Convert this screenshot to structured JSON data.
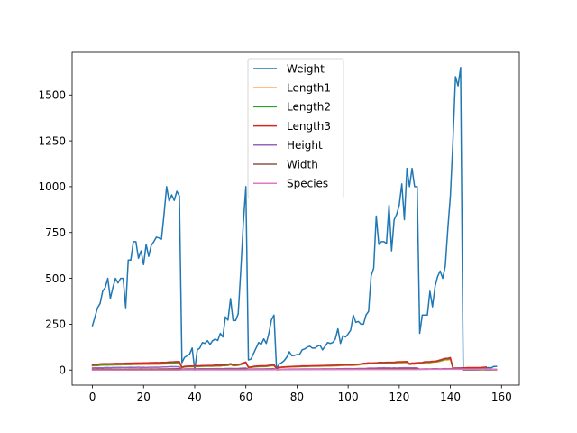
{
  "chart_data": {
    "type": "line",
    "title": "",
    "xlabel": "",
    "ylabel": "",
    "xlim": [
      -7.95,
      166.95
    ],
    "ylim": [
      -82.5,
      1732.5
    ],
    "x_ticks": [
      0,
      20,
      40,
      60,
      80,
      100,
      120,
      140,
      160
    ],
    "y_ticks": [
      0,
      250,
      500,
      750,
      1000,
      1250,
      1500
    ],
    "legend_position": "upper center",
    "series": [
      {
        "name": "Weight",
        "color": "#1f77b4",
        "values": [
          242,
          290,
          340,
          363,
          430,
          450,
          500,
          390,
          450,
          500,
          475,
          500,
          500,
          340,
          600,
          600,
          700,
          700,
          610,
          650,
          575,
          685,
          620,
          680,
          700,
          725,
          720,
          714,
          850,
          1000,
          920,
          955,
          925,
          975,
          950,
          40,
          69,
          78,
          87,
          120,
          0,
          110,
          120,
          150,
          145,
          160,
          140,
          160,
          169,
          161,
          200,
          180,
          290,
          272,
          390,
          270,
          270,
          306,
          540,
          800,
          1000,
          55,
          60,
          90,
          120,
          150,
          140,
          170,
          145,
          200,
          273,
          300,
          5.9,
          32,
          40,
          51.5,
          70,
          100,
          78,
          80,
          85,
          85,
          110,
          115,
          125,
          130,
          120,
          120,
          130,
          135,
          110,
          130,
          150,
          145,
          150,
          170,
          225,
          145,
          188,
          180,
          197,
          218,
          300,
          260,
          265,
          250,
          250,
          300,
          320,
          514,
          556,
          840,
          685,
          700,
          700,
          690,
          900,
          650,
          820,
          850,
          900,
          1015,
          820,
          1100,
          1000,
          1100,
          1000,
          1000,
          200,
          300,
          300,
          300,
          430,
          345,
          456,
          510,
          540,
          500,
          567,
          770,
          950,
          1250,
          1600,
          1550,
          1650,
          6.7,
          7.5,
          7,
          9.7,
          9.8,
          8.7,
          10,
          9.9,
          9.8,
          12.2,
          13.4,
          12.2,
          19.7,
          19.9
        ]
      },
      {
        "name": "Length1",
        "color": "#ff7f0e",
        "values": [
          23.2,
          24,
          23.9,
          26.3,
          26.5,
          26.8,
          26.8,
          27.6,
          27.6,
          28.5,
          28.4,
          28.7,
          29.1,
          29.5,
          29.4,
          29.4,
          30.4,
          30.4,
          30.9,
          31,
          31.3,
          31.4,
          31.5,
          31.8,
          31.9,
          31.8,
          32,
          32.7,
          32.8,
          33.5,
          35,
          35,
          36.2,
          37.4,
          38,
          12.9,
          16.5,
          17.5,
          18.2,
          18.6,
          19,
          19.1,
          19.4,
          20.4,
          20.5,
          20.5,
          21,
          21.1,
          22,
          22,
          22.1,
          23.6,
          24,
          25,
          29.5,
          23.6,
          24.1,
          25.6,
          28.5,
          33.7,
          37.3,
          13.5,
          14.3,
          16.3,
          17.5,
          18.4,
          19,
          19,
          19.8,
          21.2,
          23,
          24,
          7.5,
          12.5,
          13.8,
          15,
          15.7,
          16.2,
          16.8,
          17.2,
          17.8,
          18.2,
          19,
          19,
          19.8,
          20,
          20.5,
          20.5,
          20.7,
          21,
          21.5,
          22,
          22,
          22,
          22.6,
          23,
          23.5,
          25,
          25.2,
          25.4,
          25.4,
          25.4,
          25.9,
          26.9,
          27.8,
          30.5,
          32,
          32.5,
          34,
          34,
          34.5,
          34.6,
          36.5,
          36.5,
          36.6,
          36.9,
          37,
          37,
          37.1,
          39,
          39.8,
          40.1,
          40.2,
          41.1,
          30,
          31.7,
          32.7,
          34.8,
          35.5,
          36,
          40,
          40,
          40.1,
          42,
          43.2,
          44.8,
          48.3,
          52,
          56,
          56,
          59,
          9.3,
          10,
          10.1,
          10.4,
          10.7,
          10.8,
          11.3,
          11.3,
          11.4,
          11.5,
          11.7,
          12.1,
          13.2,
          13.8
        ]
      },
      {
        "name": "Length2",
        "color": "#2ca02c",
        "values": [
          25.4,
          26.3,
          26.5,
          29,
          29,
          29.7,
          29.7,
          30,
          30,
          30.7,
          31,
          31,
          31.5,
          32,
          32,
          32,
          33,
          33,
          33.5,
          33.5,
          34,
          34,
          34.5,
          35,
          35,
          35,
          35,
          36,
          36,
          37,
          38.5,
          38.5,
          39.5,
          41,
          41,
          14.1,
          18.2,
          18.8,
          19.8,
          20,
          20.5,
          20.8,
          21,
          22,
          22,
          22,
          22.5,
          22.5,
          24,
          23.4,
          23.5,
          25.2,
          26,
          27,
          31.7,
          26,
          26.5,
          28,
          31,
          36.4,
          40,
          14.7,
          15.5,
          17.7,
          19,
          20,
          20.7,
          20.7,
          21.5,
          23,
          25,
          26,
          8.4,
          13.7,
          15,
          16.2,
          17.4,
          18,
          18.7,
          19,
          19.6,
          20,
          21,
          21,
          21.5,
          22,
          22.5,
          22.5,
          22.7,
          23,
          23.5,
          24,
          24,
          24,
          24.6,
          25,
          25.6,
          26.5,
          27.3,
          27.5,
          27.5,
          27.5,
          28,
          28.7,
          30,
          32.8,
          34.5,
          35,
          36.5,
          36,
          37,
          37,
          39,
          39,
          39,
          40,
          40,
          40,
          40,
          42,
          43,
          43,
          43.5,
          44,
          32.3,
          34,
          35,
          37.3,
          38,
          38.5,
          42.5,
          42.5,
          43,
          45,
          46,
          48,
          51.2,
          55,
          60,
          60,
          63.4,
          9.8,
          10.5,
          10.6,
          11,
          11.2,
          11.3,
          11.8,
          11.8,
          12,
          12.2,
          12.4,
          13,
          14.3,
          15
        ]
      },
      {
        "name": "Length3",
        "color": "#d62728",
        "values": [
          30,
          31.2,
          31.1,
          33.5,
          34,
          34.7,
          34.5,
          35,
          35.1,
          36.2,
          36.2,
          36.2,
          36.4,
          37.3,
          37.2,
          37.2,
          38.3,
          38.5,
          38.6,
          38.7,
          39.5,
          39.2,
          39.7,
          40.6,
          40.5,
          40.9,
          40.6,
          41.5,
          41.6,
          42.6,
          44.1,
          44,
          45.3,
          45.9,
          46.5,
          16.2,
          20.3,
          21.2,
          22.2,
          22.2,
          22.8,
          23.1,
          23.7,
          24.7,
          24.3,
          25.3,
          25,
          25,
          27.2,
          26.7,
          26.8,
          27.9,
          29.2,
          30.6,
          35,
          28.7,
          29.3,
          30.8,
          34,
          39.6,
          43.5,
          16.2,
          17.2,
          19.9,
          21.3,
          22.4,
          23.2,
          23.2,
          24.1,
          25.8,
          28,
          29,
          8.8,
          14.7,
          16,
          17.2,
          18.5,
          19.2,
          19.4,
          20.2,
          20.8,
          21,
          22.5,
          22.5,
          22.5,
          22.8,
          23.5,
          23.5,
          24,
          24.2,
          24.8,
          25,
          25.5,
          25.5,
          26.2,
          26.5,
          27,
          28,
          28.7,
          28.9,
          28.9,
          28.9,
          29.4,
          30.1,
          31.6,
          34,
          36.5,
          37.3,
          39,
          38.3,
          39.4,
          39.3,
          41.4,
          41.4,
          41.3,
          42.3,
          42.5,
          42.4,
          42.5,
          44.6,
          45.2,
          45.5,
          46,
          46.6,
          34.8,
          37.8,
          38.8,
          39.8,
          40.5,
          41,
          45.5,
          45.5,
          45.8,
          48,
          48.7,
          51.2,
          55.1,
          59.7,
          64,
          64,
          68,
          10.8,
          11.6,
          11.6,
          12,
          12.4,
          12.6,
          13.1,
          13.1,
          13.2,
          13.4,
          13.5,
          13.8,
          15.2,
          16.2
        ]
      },
      {
        "name": "Height",
        "color": "#9467bd",
        "values": [
          11.52,
          12.48,
          12.38,
          12.73,
          12.44,
          13.6,
          14.18,
          12.67,
          14,
          14.23,
          14.26,
          14.37,
          13.76,
          13.91,
          14.95,
          15.44,
          14.86,
          14.94,
          15.63,
          14.47,
          15.13,
          14.3,
          15.55,
          15.1,
          15.33,
          16.14,
          15.52,
          16.52,
          16.85,
          17.39,
          18.04,
          18.96,
          18.04,
          18.05,
          17.62,
          4.15,
          6.33,
          6.91,
          6.65,
          6.47,
          6.43,
          6.72,
          7.3,
          7.17,
          7.17,
          7.12,
          7.28,
          7.38,
          7.83,
          7.92,
          7.99,
          7.47,
          8.25,
          8.58,
          9.12,
          8.18,
          8.51,
          8.8,
          10.08,
          10.45,
          11.34,
          4.93,
          5.2,
          5.42,
          6.1,
          6.12,
          6.21,
          6.21,
          6.6,
          6.85,
          7.55,
          7.8,
          2.11,
          3.53,
          3.82,
          4.59,
          4.59,
          5.22,
          5.2,
          5.64,
          5.48,
          5.52,
          6.23,
          6.13,
          6.3,
          6.33,
          6.04,
          6.28,
          6.35,
          6.23,
          6.38,
          6.8,
          6.63,
          6.56,
          6.51,
          6.93,
          7.12,
          6.96,
          7.17,
          7.68,
          7.82,
          7.61,
          7.32,
          8.15,
          8.77,
          8.5,
          8.8,
          9.26,
          10.27,
          10.9,
          10.25,
          10.67,
          12.49,
          11.3,
          12.6,
          11.62,
          12.04,
          11.05,
          12.27,
          10.69,
          12.23,
          12.28,
          12.66,
          12.83,
          12.93,
          12.43,
          12.65,
          11.64,
          5.26,
          5.95,
          6.6,
          6.73,
          6.26,
          7.16,
          7.15,
          7.07,
          6.26,
          7.03,
          7.64,
          7.2,
          8.06,
          8.63,
          9.65,
          8.96,
          10.81,
          1.58,
          1.88,
          1.85,
          1.99,
          1.9,
          2.05,
          2.36,
          2.25,
          2.16,
          2.14,
          2.15,
          2.35,
          2.14,
          2.43
        ]
      },
      {
        "name": "Width",
        "color": "#8c564b",
        "values": [
          4.02,
          4.31,
          4.7,
          4.46,
          5.13,
          4.93,
          5.28,
          4.69,
          4.84,
          4.96,
          5.1,
          4.81,
          4.37,
          5.07,
          5.17,
          5.58,
          5.29,
          5.2,
          5.58,
          5.73,
          5.56,
          5.27,
          5.22,
          5.87,
          5.42,
          5.56,
          5.94,
          5.84,
          6.11,
          5.72,
          6.38,
          6.74,
          6.37,
          7.19,
          7.6,
          2.27,
          2.85,
          3.12,
          3.05,
          3.11,
          2.65,
          3.45,
          3.79,
          3.28,
          3.89,
          3.98,
          3.67,
          3.91,
          4.21,
          3.64,
          4.08,
          3.56,
          4.82,
          4.38,
          4.63,
          4.43,
          4.76,
          4.31,
          5.56,
          4.94,
          5.47,
          2.31,
          2.89,
          2.93,
          3.17,
          3.19,
          3.28,
          3.26,
          3.43,
          3.58,
          3.31,
          3.83,
          1.41,
          2.0,
          2.17,
          2.51,
          2.51,
          2.56,
          2.59,
          2.73,
          3.0,
          3.06,
          3.0,
          2.74,
          3.04,
          3.0,
          3.36,
          3.4,
          3.24,
          3.62,
          3.58,
          3.93,
          3.81,
          3.88,
          3.63,
          3.43,
          4.24,
          4.05,
          4.25,
          4.12,
          4.7,
          3.89,
          4.12,
          5.13,
          4.37,
          5.01,
          5.06,
          4.85,
          5.83,
          5.98,
          5.46,
          6.32,
          6.01,
          6.67,
          5.95,
          6.77,
          6.57,
          6.26,
          7.07,
          6.77,
          6.46,
          6.39,
          6.65,
          7.28,
          6.6,
          7.28,
          7.46,
          6.75,
          3.73,
          4.01,
          4.27,
          4.26,
          4.5,
          4.57,
          5.55,
          5.58,
          4.41,
          5.49,
          5.23,
          5.06,
          6.11,
          6.13,
          6.46,
          6.13,
          6.96,
          1.12,
          1.34,
          1.33,
          1.3,
          1.38,
          1.42,
          1.34,
          1.45,
          1.47,
          1.39,
          1.42,
          1.38,
          1.5,
          1.38
        ]
      },
      {
        "name": "Species",
        "color": "#e377c2",
        "values": [
          0,
          0,
          0,
          0,
          0,
          0,
          0,
          0,
          0,
          0,
          0,
          0,
          0,
          0,
          0,
          0,
          0,
          0,
          0,
          0,
          0,
          0,
          0,
          0,
          0,
          0,
          0,
          0,
          0,
          0,
          0,
          0,
          0,
          0,
          0,
          1,
          1,
          1,
          1,
          1,
          1,
          1,
          1,
          1,
          1,
          1,
          1,
          1,
          1,
          1,
          1,
          1,
          1,
          1,
          1,
          1,
          1,
          1,
          1,
          1,
          1,
          2,
          2,
          2,
          2,
          2,
          2,
          2,
          2,
          2,
          2,
          2,
          3,
          3,
          3,
          3,
          3,
          3,
          3,
          3,
          3,
          3,
          3,
          3,
          3,
          3,
          3,
          3,
          3,
          3,
          3,
          3,
          3,
          3,
          3,
          3,
          3,
          3,
          3,
          3,
          3,
          3,
          3,
          3,
          3,
          3,
          3,
          3,
          3,
          3,
          3,
          3,
          3,
          3,
          3,
          3,
          3,
          3,
          3,
          3,
          3,
          3,
          3,
          3,
          3,
          3,
          3,
          3,
          4,
          4,
          4,
          4,
          4,
          4,
          4,
          4,
          4,
          4,
          4,
          4,
          4,
          4,
          4,
          4,
          4,
          5,
          5,
          5,
          5,
          5,
          5,
          5,
          5,
          5,
          5,
          5,
          5,
          5,
          5
        ]
      }
    ]
  }
}
